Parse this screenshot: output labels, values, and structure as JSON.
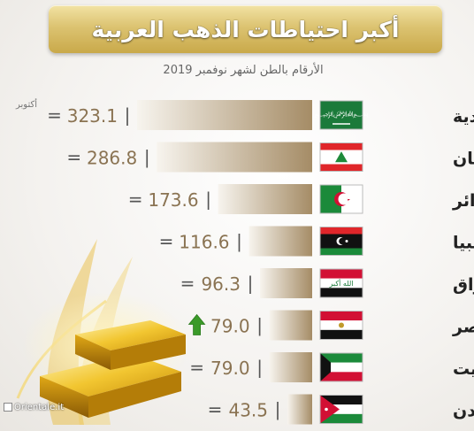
{
  "title": "أكبر احتياطات الذهب العربية",
  "subtitle": "الأرقام بالطن لشهر نوفمبر 2019",
  "watermark": "Orientale.it",
  "note_label": "أكتوبر",
  "colors": {
    "bar_dark": "#a58c66",
    "bar_light": "#f7f4ee",
    "value_text": "#8a7352",
    "arrow_green": "#3b9a29",
    "banner_gold": "#d8bd68"
  },
  "chart_data": {
    "type": "bar",
    "orientation": "horizontal",
    "title": "أكبر احتياطات الذهب العربية",
    "subtitle": "الأرقام بالطن لشهر نوفمبر 2019",
    "categories": [
      "السعودية",
      "لبنان",
      "الجزائر",
      "ليبيا",
      "العراق",
      "مصر",
      "الكويت",
      "الأردن"
    ],
    "values": [
      323.1,
      286.8,
      173.6,
      116.6,
      96.3,
      79.0,
      79.0,
      43.5
    ],
    "value_labels": [
      "323.1",
      "286.8",
      "173.6",
      "116.6",
      "96.3",
      "79.0",
      "79.0",
      "43.5"
    ],
    "change_vs_october": [
      "=",
      "=",
      "=",
      "=",
      "=",
      "up",
      "=",
      "="
    ],
    "flag_icons": [
      "flag-saudi-arabia",
      "flag-lebanon",
      "flag-algeria",
      "flag-libya",
      "flag-iraq",
      "flag-egypt",
      "flag-kuwait",
      "flag-jordan"
    ],
    "xlim": [
      0,
      323.1
    ]
  }
}
